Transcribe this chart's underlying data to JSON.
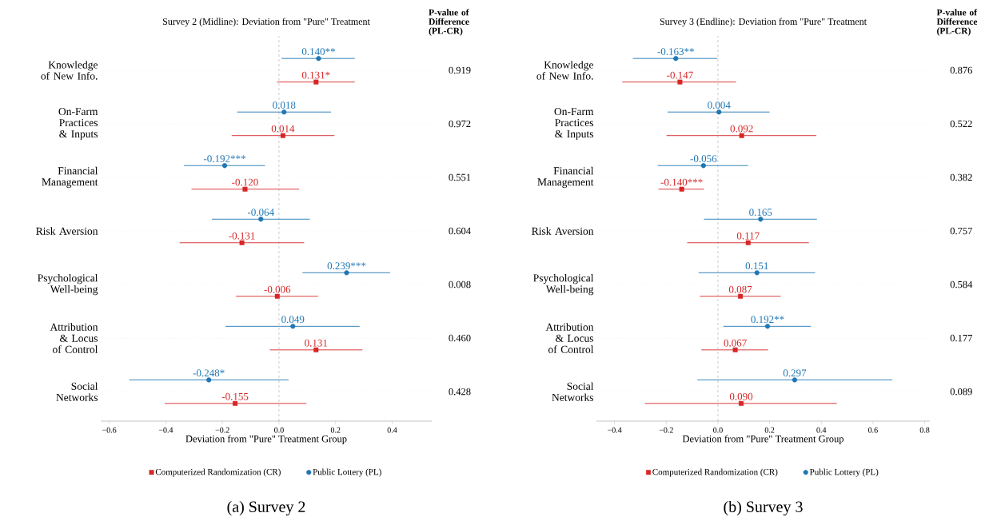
{
  "chart_data": [
    {
      "type": "scatter",
      "orientation": "horizontal",
      "title": "Survey 2 (Midline): Deviation from \"Pure\" Treatment",
      "xlabel": "Deviation from \"Pure\" Treatment Group",
      "categories": [
        "Knowledge of New Info.",
        "On-Farm Practices & Inputs",
        "Financial Management",
        "Risk Aversion",
        "Psychological Well-being",
        "Attribution & Locus of Control",
        "Social Networks"
      ],
      "series": [
        {
          "name": "Computerized Randomization (CR)",
          "color": "#d62728",
          "marker": "square",
          "values": [
            0.131,
            0.014,
            -0.12,
            -0.131,
            -0.006,
            0.131,
            -0.155
          ],
          "value_labels": [
            "0.131*",
            "0.014",
            "-0.120",
            "-0.131",
            "-0.006",
            "0.131",
            "-0.155"
          ],
          "errors": [
            [
              -0.007,
              0.268
            ],
            [
              -0.167,
              0.196
            ],
            [
              -0.309,
              0.071
            ],
            [
              -0.351,
              0.089
            ],
            [
              -0.152,
              0.138
            ],
            [
              -0.032,
              0.295
            ],
            [
              -0.404,
              0.097
            ]
          ]
        },
        {
          "name": "Public Lottery (PL)",
          "color": "#1f77b4",
          "marker": "circle",
          "values": [
            0.14,
            0.018,
            -0.192,
            -0.064,
            0.239,
            0.049,
            -0.248
          ],
          "value_labels": [
            "0.140**",
            "0.018",
            "-0.192***",
            "-0.064",
            "0.239***",
            "0.049",
            "-0.248*"
          ],
          "errors": [
            [
              0.009,
              0.268
            ],
            [
              -0.148,
              0.184
            ],
            [
              -0.336,
              -0.049
            ],
            [
              -0.237,
              0.109
            ],
            [
              0.083,
              0.393
            ],
            [
              -0.189,
              0.285
            ],
            [
              -0.529,
              0.034
            ]
          ]
        }
      ],
      "xlim": [
        -0.63,
        0.54
      ],
      "xticks": [
        {
          "value": -0.6,
          "label": "−0.6"
        },
        {
          "value": -0.4,
          "label": "−0.4"
        },
        {
          "value": -0.2,
          "label": "−0.2"
        },
        {
          "value": 0,
          "label": "0.0"
        },
        0.2,
        0.4
      ],
      "ref_lines": [
        {
          "axis": "x",
          "value": 0,
          "color": "#999999",
          "line_style": "dashed"
        }
      ],
      "grid": "y",
      "legend": "bottom",
      "annotations": [
        "P-value of Difference (PL-CR)",
        "0.919",
        "0.972",
        "0.551",
        "0.604",
        "0.008",
        "0.460",
        "0.428",
        "(a) Survey 2"
      ]
    },
    {
      "type": "scatter",
      "orientation": "horizontal",
      "title": "Survey 3 (Endline): Deviation from \"Pure\" Treatment",
      "xlabel": "Deviation from \"Pure\" Treatment Group",
      "categories": [
        "Knowledge of New Info.",
        "On-Farm Practices & Inputs",
        "Financial Management",
        "Risk Aversion",
        "Psychological Well-being",
        "Attribution & Locus of Control",
        "Social Networks"
      ],
      "series": [
        {
          "name": "Computerized Randomization (CR)",
          "color": "#d62728",
          "marker": "square",
          "values": [
            -0.147,
            0.092,
            -0.14,
            0.117,
            0.087,
            0.067,
            0.09
          ],
          "value_labels": [
            "-0.147",
            "0.092",
            "-0.140***",
            "0.117",
            "0.087",
            "0.067",
            "0.090"
          ],
          "errors": [
            [
              -0.37,
              0.07
            ],
            [
              -0.199,
              0.381
            ],
            [
              -0.23,
              -0.054
            ],
            [
              -0.119,
              0.352
            ],
            [
              -0.07,
              0.243
            ],
            [
              -0.064,
              0.194
            ],
            [
              -0.283,
              0.46
            ]
          ]
        },
        {
          "name": "Public Lottery (PL)",
          "color": "#1f77b4",
          "marker": "circle",
          "values": [
            -0.163,
            0.004,
            -0.056,
            0.165,
            0.151,
            0.192,
            0.297
          ],
          "value_labels": [
            "-0.163**",
            "0.004",
            "-0.056",
            "0.165",
            "0.151",
            "0.192**",
            "0.297"
          ],
          "errors": [
            [
              -0.329,
              -0.002
            ],
            [
              -0.195,
              0.2
            ],
            [
              -0.233,
              0.117
            ],
            [
              -0.054,
              0.383
            ],
            [
              -0.075,
              0.376
            ],
            [
              0.021,
              0.36
            ],
            [
              -0.079,
              0.675
            ]
          ]
        }
      ],
      "xlim": [
        -0.47,
        0.82
      ],
      "xticks": [
        {
          "value": -0.4,
          "label": "−0.4"
        },
        {
          "value": -0.2,
          "label": "−0.2"
        },
        {
          "value": 0,
          "label": "0.0"
        },
        0.2,
        0.4,
        0.6,
        0.8
      ],
      "ref_lines": [
        {
          "axis": "x",
          "value": 0,
          "color": "#999999",
          "line_style": "dashed"
        }
      ],
      "grid": "y",
      "legend": "bottom",
      "annotations": [
        "P-value of Difference (PL-CR)",
        "0.876",
        "0.522",
        "0.382",
        "0.757",
        "0.584",
        "0.177",
        "0.089",
        "(b) Survey 3"
      ]
    }
  ]
}
